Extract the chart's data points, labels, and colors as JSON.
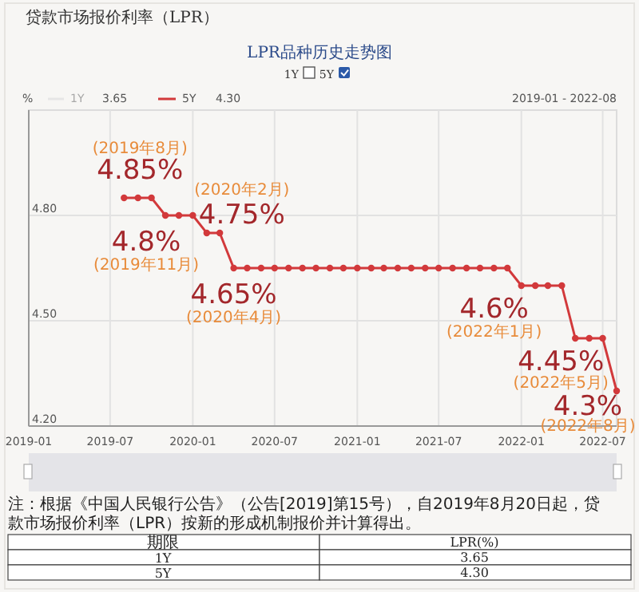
{
  "chart_data": {
    "type": "line",
    "title": "贷款市场报价利率（LPR）",
    "subtitle": "LPR品种历史走势图",
    "ylabel": "%",
    "x": [
      "2019-08",
      "2019-09",
      "2019-10",
      "2019-11",
      "2019-12",
      "2020-01",
      "2020-02",
      "2020-03",
      "2020-04",
      "2020-05",
      "2020-06",
      "2020-07",
      "2020-08",
      "2020-09",
      "2020-10",
      "2020-11",
      "2020-12",
      "2021-01",
      "2021-02",
      "2021-03",
      "2021-04",
      "2021-05",
      "2021-06",
      "2021-07",
      "2021-08",
      "2021-09",
      "2021-10",
      "2021-11",
      "2021-12",
      "2022-01",
      "2022-02",
      "2022-03",
      "2022-04",
      "2022-05",
      "2022-06",
      "2022-07",
      "2022-08"
    ],
    "series": [
      {
        "name": "5Y",
        "color": "#d2393b",
        "values": [
          4.85,
          4.85,
          4.85,
          4.8,
          4.8,
          4.8,
          4.75,
          4.75,
          4.65,
          4.65,
          4.65,
          4.65,
          4.65,
          4.65,
          4.65,
          4.65,
          4.65,
          4.65,
          4.65,
          4.65,
          4.65,
          4.65,
          4.65,
          4.65,
          4.65,
          4.65,
          4.65,
          4.65,
          4.65,
          4.6,
          4.6,
          4.6,
          4.6,
          4.45,
          4.45,
          4.45,
          4.3
        ]
      }
    ],
    "xlim": [
      "2019-01",
      "2022-08"
    ],
    "xticks": [
      {
        "value": "2019-01",
        "label": "2019-01"
      },
      {
        "value": "2019-07",
        "label": "2019-07"
      },
      {
        "value": "2020-01",
        "label": "2020-01"
      },
      {
        "value": "2020-07",
        "label": "2020-07"
      },
      {
        "value": "2021-01",
        "label": "2021-01"
      },
      {
        "value": "2021-07",
        "label": "2021-07"
      },
      {
        "value": "2022-01",
        "label": "2022-01"
      },
      {
        "value": "2022-07",
        "label": "2022-07"
      }
    ],
    "ylim": [
      4.2,
      5.1
    ],
    "yticks": [
      {
        "value": 4.2,
        "label": "4.20"
      },
      {
        "value": 4.5,
        "label": "4.50"
      },
      {
        "value": 4.8,
        "label": "4.80"
      }
    ],
    "grid": true,
    "legend": "top left",
    "marker": "circle",
    "line_style": "solid",
    "annotations": [
      {
        "text": "4.85%",
        "x": "2019-08",
        "y": 4.85
      },
      {
        "text": "(2019年8月)",
        "x": "2019-08",
        "y": 4.85
      },
      {
        "text": "4.8%",
        "x": "2019-11",
        "y": 4.8
      },
      {
        "text": "(2019年11月)",
        "x": "2019-11",
        "y": 4.8
      },
      {
        "text": "4.75%",
        "x": "2020-02",
        "y": 4.75
      },
      {
        "text": "(2020年2月)",
        "x": "2020-02",
        "y": 4.75
      },
      {
        "text": "4.65%",
        "x": "2020-04",
        "y": 4.65
      },
      {
        "text": "(2020年4月)",
        "x": "2020-04",
        "y": 4.65
      },
      {
        "text": "4.6%",
        "x": "2022-01",
        "y": 4.6
      },
      {
        "text": "(2022年1月)",
        "x": "2022-01",
        "y": 4.6
      },
      {
        "text": "4.45%",
        "x": "2022-05",
        "y": 4.45
      },
      {
        "text": "(2022年5月)",
        "x": "2022-05",
        "y": 4.45
      },
      {
        "text": "4.3%",
        "x": "2022-08",
        "y": 4.3
      },
      {
        "text": "(2022年8月)",
        "x": "2022-08",
        "y": 4.3
      },
      "1Y",
      "5Y",
      "1Y",
      "3.65",
      "4.30",
      "2019-01 - 2022-08",
      "注：根据《中国人民银行公告》（公告[2019]第15号），自2019年8月20日起，贷款市场报价利率（LPR）按新的形成机制报价并计算得出。",
      "期限",
      "LPR(%)",
      "1Y",
      "3.65",
      "5Y",
      "4.30"
    ]
  }
}
